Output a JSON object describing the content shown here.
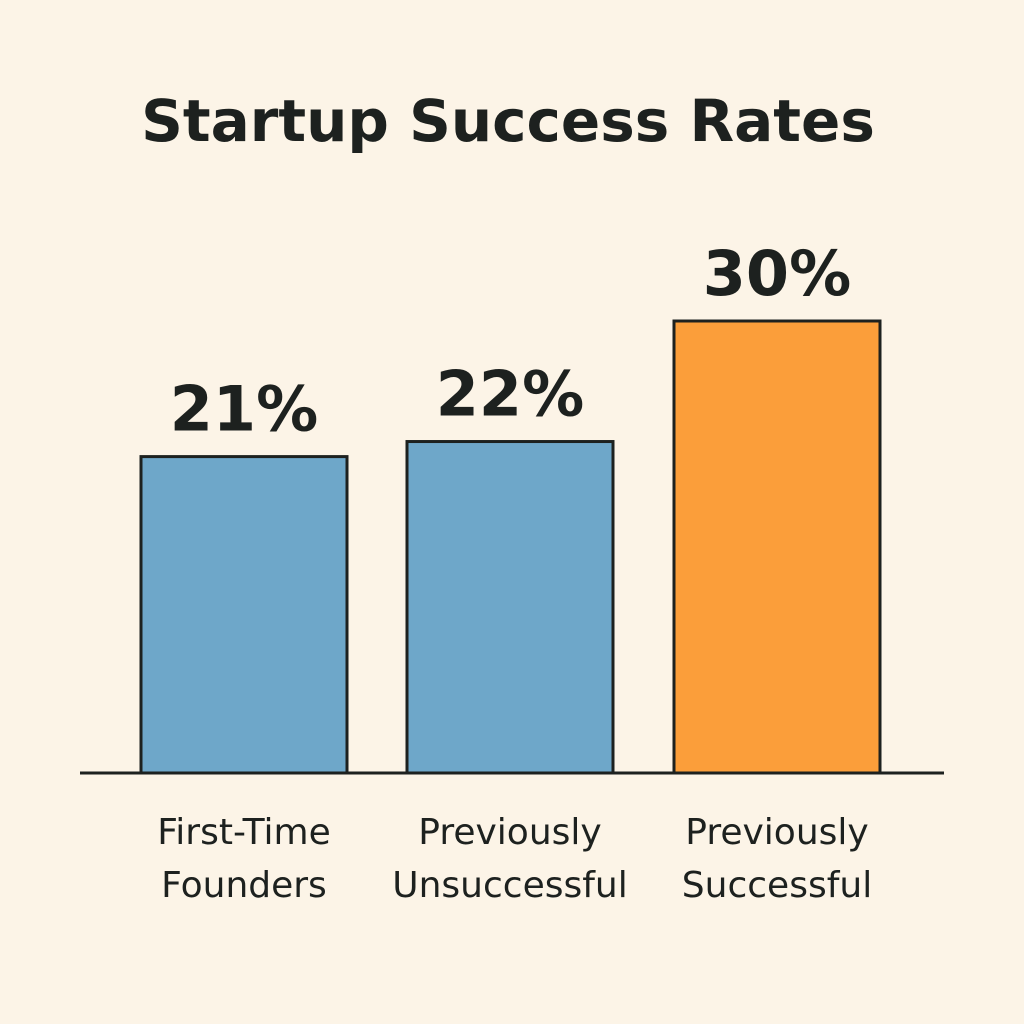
{
  "chart_data": {
    "type": "bar",
    "title": "Startup Success Rates",
    "categories": [
      [
        "First-Time",
        "Founders"
      ],
      [
        "Previously",
        "Unsuccessful"
      ],
      [
        "Previously",
        "Successful"
      ]
    ],
    "values": [
      21,
      22,
      30
    ],
    "value_labels": [
      "21%",
      "22%",
      "30%"
    ],
    "bar_colors": [
      "#6ea7c9",
      "#6ea7c9",
      "#fb9e3a"
    ],
    "outline_color": "#1d211f",
    "ylim": [
      0,
      30
    ],
    "grid": false,
    "legend": "none"
  }
}
